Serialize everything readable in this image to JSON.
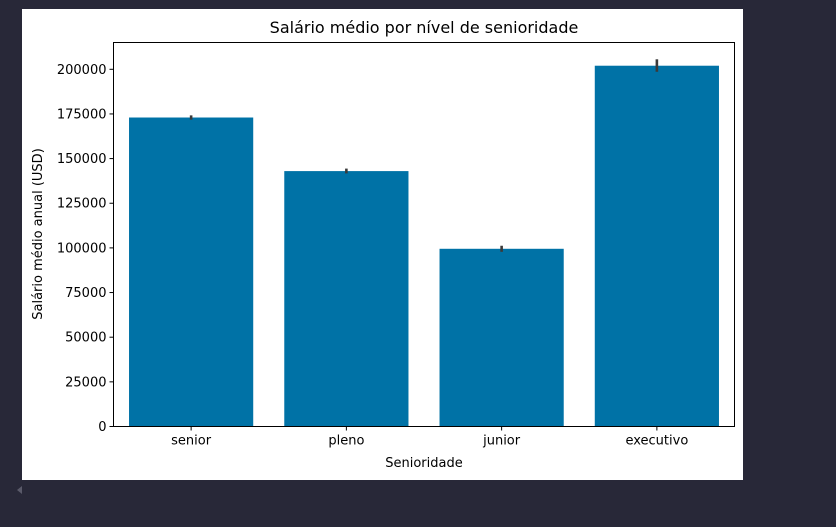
{
  "chart_data": {
    "type": "bar",
    "title": "Salário médio por nível de senioridade",
    "xlabel": "Senioridade",
    "ylabel": "Salário médio anual (USD)",
    "categories": [
      "senior",
      "pleno",
      "junior",
      "executivo"
    ],
    "values": [
      173000,
      143000,
      99500,
      202000
    ],
    "error_bars": [
      [
        171800,
        174200
      ],
      [
        141700,
        144400
      ],
      [
        97800,
        101200
      ],
      [
        198600,
        205600
      ]
    ],
    "ylim": [
      0,
      215000
    ],
    "yticks": [
      0,
      25000,
      50000,
      75000,
      100000,
      125000,
      150000,
      175000,
      200000
    ],
    "ytick_labels": [
      "0",
      "25000",
      "50000",
      "75000",
      "100000",
      "125000",
      "150000",
      "175000",
      "200000"
    ],
    "bar_color": "#0072a6",
    "error_color": "#3a3a3a",
    "grid": false,
    "legend": "none"
  }
}
